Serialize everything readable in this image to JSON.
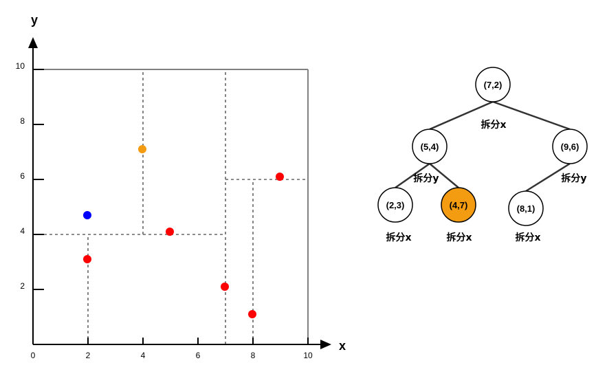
{
  "plot": {
    "x_axis_label": "x",
    "y_axis_label": "y",
    "x_range": [
      0,
      10
    ],
    "y_range": [
      0,
      10
    ],
    "x_ticks": [
      {
        "value": 0,
        "label": "0"
      },
      {
        "value": 2,
        "label": "2"
      },
      {
        "value": 4,
        "label": "4"
      },
      {
        "value": 6,
        "label": "6"
      },
      {
        "value": 8,
        "label": "8"
      },
      {
        "value": 10,
        "label": "10"
      }
    ],
    "y_ticks": [
      {
        "value": 2,
        "label": "2"
      },
      {
        "value": 4,
        "label": "4"
      },
      {
        "value": 6,
        "label": "6"
      },
      {
        "value": 8,
        "label": "8"
      },
      {
        "value": 10,
        "label": "10"
      }
    ],
    "points": [
      {
        "x": 2,
        "y": 3,
        "color": "#ff0000"
      },
      {
        "x": 5,
        "y": 4,
        "color": "#ff0000"
      },
      {
        "x": 9,
        "y": 6,
        "color": "#ff0000"
      },
      {
        "x": 4,
        "y": 7,
        "color": "#f39c12"
      },
      {
        "x": 8,
        "y": 1,
        "color": "#ff0000"
      },
      {
        "x": 7,
        "y": 2,
        "color": "#ff0000"
      },
      {
        "x": 2,
        "y": 4.6,
        "color": "#0000ff"
      }
    ],
    "boundary_lines": [
      {
        "x1": 0,
        "y1": 10,
        "x2": 10,
        "y2": 10,
        "style": "solid"
      },
      {
        "x1": 10,
        "y1": 10,
        "x2": 10,
        "y2": 0,
        "style": "solid"
      },
      {
        "x1": 7,
        "y1": 0,
        "x2": 7,
        "y2": 10,
        "style": "dashed"
      },
      {
        "x1": 0,
        "y1": 4,
        "x2": 7,
        "y2": 4,
        "style": "dashed"
      },
      {
        "x1": 2,
        "y1": 0,
        "x2": 2,
        "y2": 4,
        "style": "dashed"
      },
      {
        "x1": 4,
        "y1": 4,
        "x2": 4,
        "y2": 10,
        "style": "dashed"
      },
      {
        "x1": 7,
        "y1": 6,
        "x2": 10,
        "y2": 6,
        "style": "dashed"
      },
      {
        "x1": 8,
        "y1": 0,
        "x2": 8,
        "y2": 6,
        "style": "dashed"
      }
    ]
  },
  "tree": {
    "nodes": [
      {
        "id": "n72",
        "label": "(7,2)",
        "fill": "#ffffff"
      },
      {
        "id": "n54",
        "label": "(5,4)",
        "fill": "#ffffff"
      },
      {
        "id": "n96",
        "label": "(9,6)",
        "fill": "#ffffff"
      },
      {
        "id": "n23",
        "label": "(2,3)",
        "fill": "#ffffff"
      },
      {
        "id": "n47",
        "label": "(4,7)",
        "fill": "#f39c12"
      },
      {
        "id": "n81",
        "label": "(8,1)",
        "fill": "#ffffff"
      }
    ],
    "edges": [
      {
        "from": "n72",
        "to": "n54"
      },
      {
        "from": "n72",
        "to": "n96"
      },
      {
        "from": "n54",
        "to": "n23"
      },
      {
        "from": "n54",
        "to": "n47"
      },
      {
        "from": "n96",
        "to": "n81"
      }
    ],
    "split_labels": [
      {
        "id": "split-72",
        "text": "拆分x"
      },
      {
        "id": "split-54",
        "text": "拆分y"
      },
      {
        "id": "split-96",
        "text": "拆分y"
      },
      {
        "id": "split-23",
        "text": "拆分x"
      },
      {
        "id": "split-47",
        "text": "拆分x"
      },
      {
        "id": "split-81",
        "text": "拆分x"
      }
    ]
  }
}
